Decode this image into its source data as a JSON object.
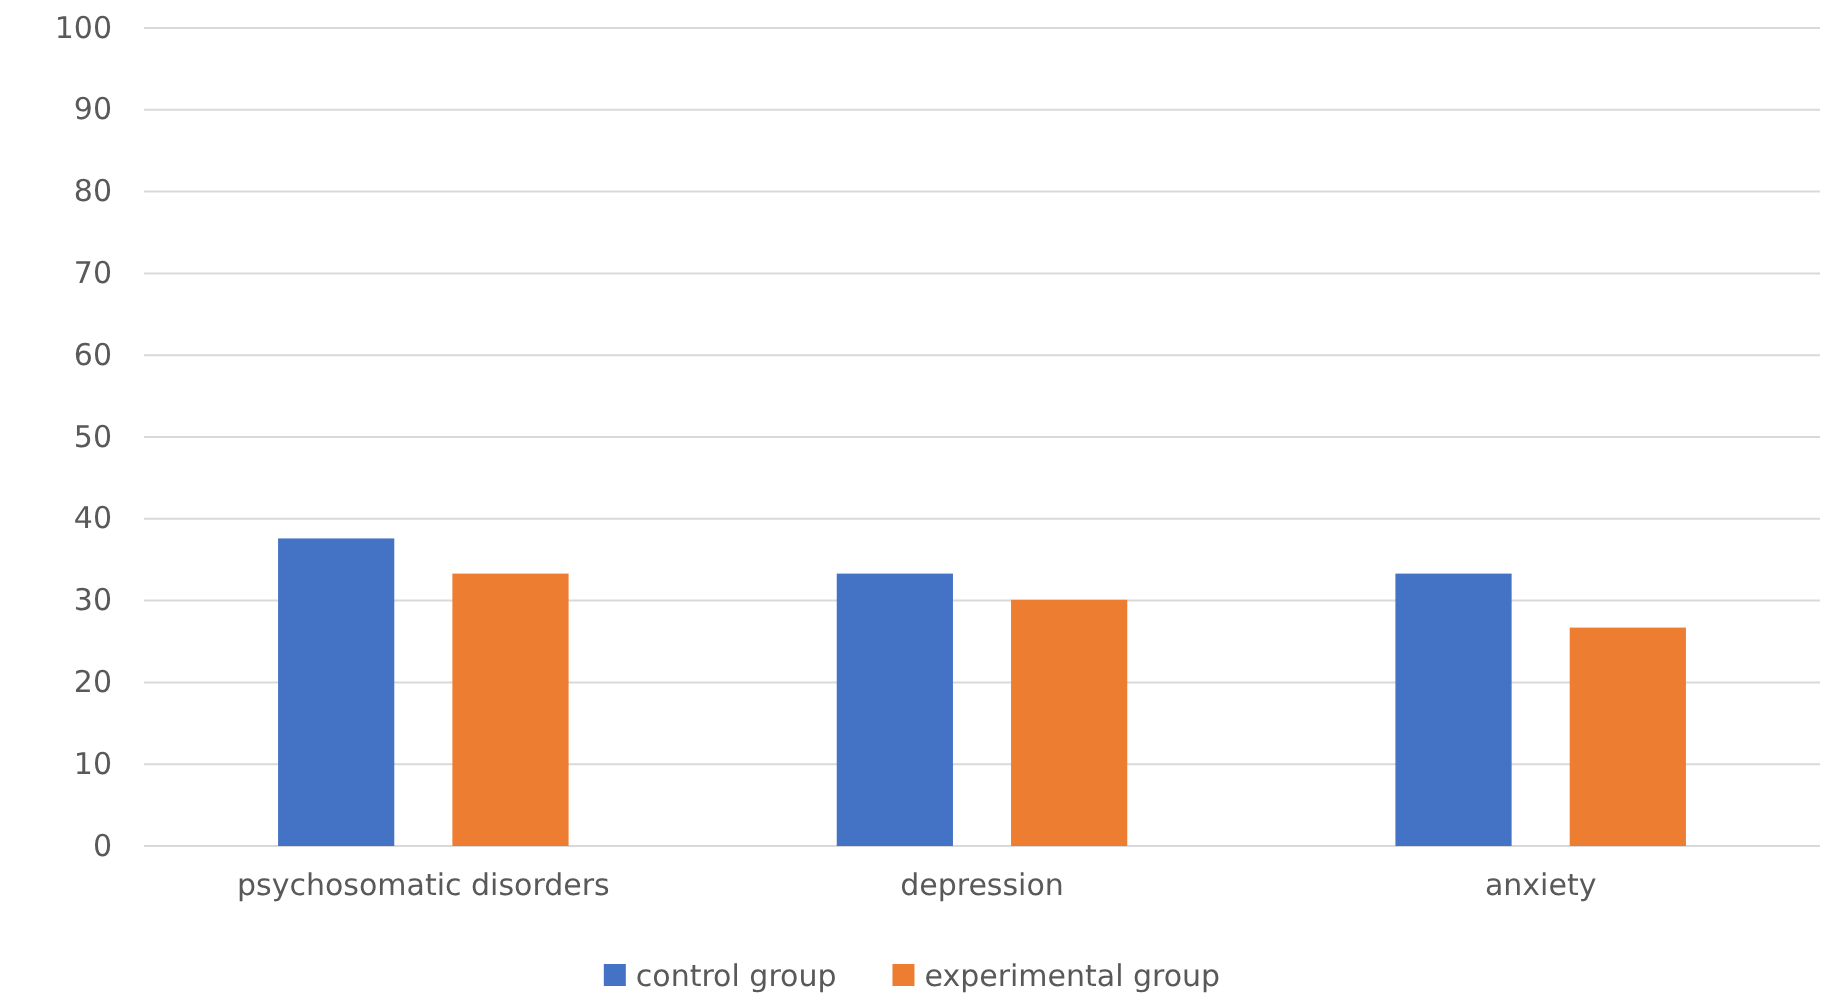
{
  "chart_data": {
    "type": "bar",
    "categories": [
      "psychosomatic disorders",
      "depression",
      "anxiety"
    ],
    "series": [
      {
        "name": "control group",
        "color": "#4472c4",
        "values": [
          37.6,
          33.3,
          33.3
        ]
      },
      {
        "name": "experimental group",
        "color": "#ed7d31",
        "values": [
          33.3,
          30.1,
          26.7
        ]
      }
    ],
    "ylim": [
      0,
      100
    ],
    "yticks": [
      0,
      10,
      20,
      30,
      40,
      50,
      60,
      70,
      80,
      90,
      100
    ],
    "grid": "y",
    "legend": "bottom"
  }
}
